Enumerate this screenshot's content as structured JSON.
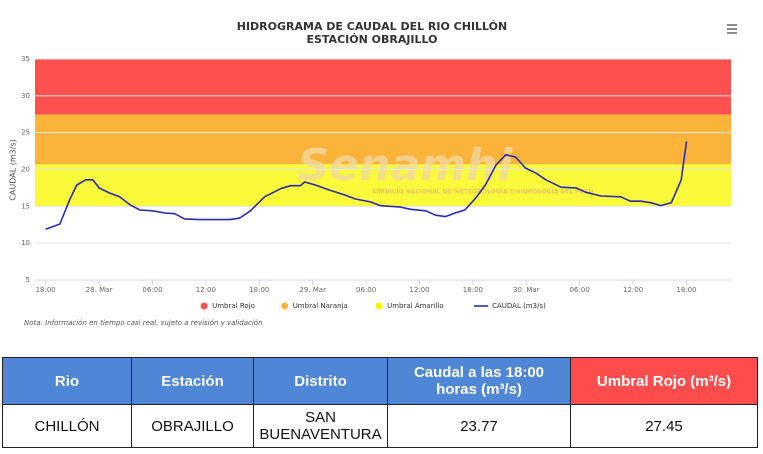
{
  "chart_data": {
    "type": "line",
    "title": "HIDROGRAMA DE CAUDAL DEL RIO CHILLÓN",
    "subtitle": "ESTACIÓN OBRAJILLO",
    "y_label": "CAUDAL (m3/s)",
    "note": "Nota: Información en tiempo casi real, sujeto a revisión y validación",
    "watermark": {
      "title": "Senamhi",
      "subtitle": "SERVICIO NACIONAL DE METEOROLOGÍA E HIDROLOGÍA DEL PERÚ"
    },
    "ylim": [
      5,
      35
    ],
    "yticks": [
      5,
      10,
      15,
      20,
      25,
      30,
      35
    ],
    "grid": true,
    "xlim": [
      -1.2,
      77
    ],
    "xticks": [
      {
        "value": 0,
        "label": "18:00"
      },
      {
        "value": 6,
        "label": "28. Mar"
      },
      {
        "value": 12,
        "label": "06:00"
      },
      {
        "value": 18,
        "label": "12:00"
      },
      {
        "value": 24,
        "label": "18:00"
      },
      {
        "value": 30,
        "label": "29. Mar"
      },
      {
        "value": 36,
        "label": "06:00"
      },
      {
        "value": 42,
        "label": "12:00"
      },
      {
        "value": 48,
        "label": "18:00"
      },
      {
        "value": 54,
        "label": "30. Mar"
      },
      {
        "value": 60,
        "label": "06:00"
      },
      {
        "value": 66,
        "label": "12:00"
      },
      {
        "value": 72,
        "label": "18:00"
      }
    ],
    "bands": [
      {
        "name": "Umbral Rojo",
        "color": "#ff5050",
        "from": 27.45,
        "to": 35
      },
      {
        "name": "Umbral Naranja",
        "color": "#fbb33a",
        "from": 20.7,
        "to": 27.45
      },
      {
        "name": "Umbral Amarillo",
        "color": "#fafa3a",
        "from": 15,
        "to": 20.7
      }
    ],
    "x": [
      0,
      1.6,
      2.7,
      3.5,
      4.5,
      5.3,
      6,
      7.2,
      8.3,
      9.5,
      10.6,
      12,
      13.4,
      14.5,
      15.6,
      17.3,
      20.7,
      21.8,
      23,
      24.6,
      26.4,
      27.5,
      28.6,
      29.1,
      30.3,
      31.9,
      33.7,
      34.8,
      36.5,
      37.6,
      39.9,
      41,
      42.7,
      43.8,
      44.9,
      46,
      47.1,
      48.3,
      49.4,
      50.6,
      51.7,
      52.8,
      53.9,
      55.1,
      56.2,
      57.9,
      59.6,
      60.7,
      62.4,
      64.6,
      65.7,
      66.9,
      68,
      69.1,
      70.3,
      71.4,
      72
    ],
    "series": [
      {
        "name": "CAUDAL (m3/s)",
        "color": "#2b2bb0",
        "values": [
          11.9,
          12.6,
          15.9,
          17.9,
          18.6,
          18.6,
          17.5,
          16.8,
          16.3,
          15.2,
          14.5,
          14.4,
          14.1,
          14,
          13.3,
          13.2,
          13.2,
          13.4,
          14.4,
          16.3,
          17.4,
          17.8,
          17.8,
          18.3,
          17.9,
          17.2,
          16.5,
          16,
          15.6,
          15.1,
          14.9,
          14.6,
          14.4,
          13.8,
          13.6,
          14.1,
          14.5,
          16.1,
          17.9,
          20.6,
          22,
          21.7,
          20.2,
          19.5,
          18.6,
          17.6,
          17.5,
          16.9,
          16.4,
          16.3,
          15.7,
          15.7,
          15.5,
          15.1,
          15.5,
          18.6,
          23.8
        ]
      }
    ]
  },
  "table": {
    "headers": [
      "Rio",
      "Estación",
      "Distrito",
      "Caudal a las 18:00 horas (m³/s)",
      "Umbral Rojo (m³/s)"
    ],
    "rows": [
      [
        "CHILLÓN",
        "OBRAJILLO",
        "SAN BUENAVENTURA",
        23.77,
        27.45
      ]
    ]
  }
}
